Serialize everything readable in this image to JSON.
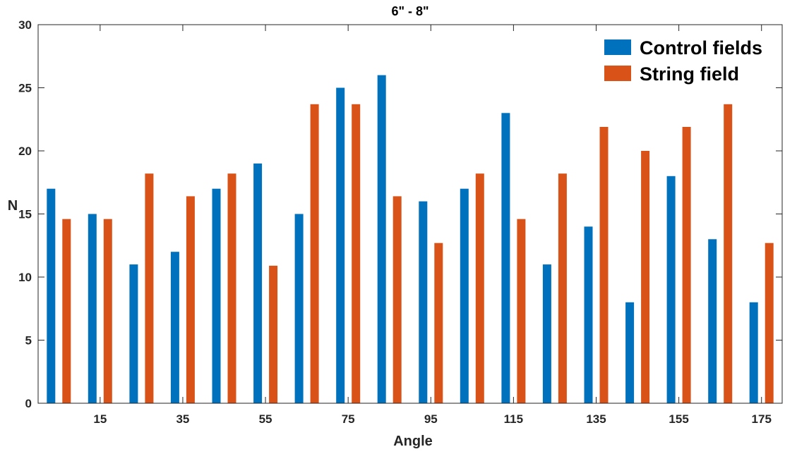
{
  "chart_data": {
    "type": "bar",
    "title": "6\" - 8\"",
    "xlabel": "Angle",
    "ylabel": "N",
    "categories": [
      5,
      15,
      25,
      35,
      45,
      55,
      65,
      75,
      85,
      95,
      105,
      115,
      125,
      135,
      145,
      155,
      165,
      175
    ],
    "xticks": [
      "15",
      "35",
      "55",
      "75",
      "95",
      "115",
      "135",
      "155",
      "175"
    ],
    "xlim": [
      0,
      180
    ],
    "ylim": [
      0,
      30
    ],
    "yticks": [
      "0",
      "5",
      "10",
      "15",
      "20",
      "25",
      "30"
    ],
    "ytick_values": [
      0,
      5,
      10,
      15,
      20,
      25,
      30
    ],
    "grid": false,
    "legend_position": "top-right",
    "series": [
      {
        "name": "Control fields",
        "color": "#0072BD",
        "values": [
          17,
          15,
          11,
          12,
          17,
          19,
          15,
          25,
          26,
          16,
          17,
          23,
          11,
          14,
          8,
          18,
          13,
          8
        ]
      },
      {
        "name": "String field",
        "color": "#D95319",
        "values": [
          14.6,
          14.6,
          18.2,
          16.4,
          18.2,
          10.9,
          23.7,
          23.7,
          16.4,
          12.7,
          18.2,
          14.6,
          18.2,
          21.9,
          20.0,
          21.9,
          23.7,
          12.7
        ]
      }
    ]
  }
}
